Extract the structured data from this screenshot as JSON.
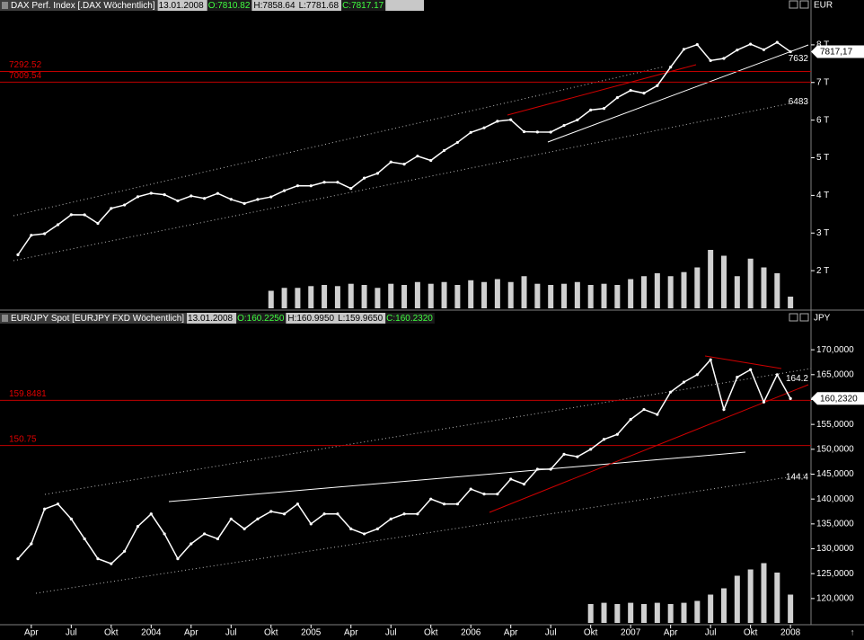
{
  "chart_data": [
    {
      "type": "line",
      "title": "DAX Perf. Index [.DAX  Wöchentlich]",
      "date": "13.01.2008",
      "header": [
        "O:7810.82",
        "H:7858.64",
        "L:7781.68",
        "C:7817.17"
      ],
      "unit": "EUR",
      "color": "#ffffff",
      "values": [
        2424,
        2942,
        2983,
        3221,
        3487,
        3484,
        3257,
        3655,
        3745,
        3965,
        4058,
        4018,
        3856,
        3985,
        3921,
        4052,
        3895,
        3785,
        3893,
        3960,
        4126,
        4256,
        4255,
        4350,
        4349,
        4185,
        4460,
        4586,
        4887,
        4830,
        5044,
        4929,
        5193,
        5408,
        5674,
        5796,
        5970,
        6009,
        5692,
        5683,
        5682,
        5859,
        6005,
        6269,
        6310,
        6597,
        6789,
        6716,
        6917,
        7409,
        7883,
        8007,
        7584,
        7639,
        7862,
        8019,
        7871,
        8067,
        7817
      ],
      "volume": [
        null,
        null,
        null,
        null,
        null,
        null,
        null,
        null,
        null,
        null,
        null,
        null,
        null,
        null,
        null,
        null,
        null,
        null,
        null,
        30,
        35,
        35,
        38,
        40,
        38,
        42,
        40,
        35,
        42,
        40,
        45,
        42,
        45,
        40,
        48,
        45,
        50,
        45,
        55,
        42,
        40,
        42,
        45,
        40,
        42,
        40,
        50,
        55,
        60,
        55,
        62,
        70,
        100,
        90,
        55,
        85,
        70,
        60,
        20
      ],
      "vlim": [
        0,
        100
      ],
      "ylim": [
        1000,
        8905
      ],
      "yticks": [
        {
          "value": 2000,
          "label": "2 T"
        },
        {
          "value": 3000,
          "label": "3 T"
        },
        {
          "value": 4000,
          "label": "4 T"
        },
        {
          "value": 5000,
          "label": "5 T"
        },
        {
          "value": 6000,
          "label": "6 T"
        },
        {
          "value": 7000,
          "label": "7 T"
        },
        {
          "value": 8000,
          "label": "8 T"
        }
      ],
      "last_price": {
        "value": 7817.17,
        "label": "7817,17"
      },
      "levels": [
        7292.52,
        7009.54
      ],
      "annotations": [
        7632,
        6483
      ]
    },
    {
      "type": "line",
      "title": "EUR/JPY Spot [EURJPY FXD  Wöchentlich]",
      "date": "13.01.2008",
      "header": [
        "O:160.2250",
        "H:160.9950",
        "L:159.9650",
        "C:160.2320"
      ],
      "unit": "JPY",
      "color": "#ffffff",
      "categories": [
        null,
        "Apr",
        null,
        null,
        "Jul",
        null,
        null,
        "Okt",
        null,
        null,
        "2004",
        null,
        null,
        "Apr",
        null,
        null,
        "Jul",
        null,
        null,
        "Okt",
        null,
        null,
        "2005",
        null,
        null,
        "Apr",
        null,
        null,
        "Jul",
        null,
        null,
        "Okt",
        null,
        null,
        "2006",
        null,
        null,
        "Apr",
        null,
        null,
        "Jul",
        null,
        null,
        "Okt",
        null,
        null,
        "2007",
        null,
        null,
        "Apr",
        null,
        null,
        "Jul",
        null,
        null,
        "Okt",
        null,
        null,
        "2008"
      ],
      "values": [
        128,
        131,
        138,
        139,
        136,
        132,
        128,
        127,
        129.5,
        134.5,
        137,
        133,
        128,
        131,
        133,
        132,
        136,
        134,
        136,
        137.5,
        137,
        139,
        135,
        137,
        137,
        134,
        133,
        134,
        136,
        137,
        137,
        140,
        139,
        139,
        142,
        141,
        141,
        144,
        143,
        146,
        146,
        149,
        148.5,
        150,
        152,
        153,
        156,
        158,
        157,
        161.5,
        163.5,
        165,
        168,
        158,
        164.5,
        166,
        159.5,
        165,
        160.2
      ],
      "volume": [
        null,
        null,
        null,
        null,
        null,
        null,
        null,
        null,
        null,
        null,
        null,
        null,
        null,
        null,
        null,
        null,
        null,
        null,
        null,
        null,
        null,
        null,
        null,
        null,
        null,
        null,
        null,
        null,
        null,
        null,
        null,
        null,
        null,
        null,
        null,
        null,
        null,
        null,
        null,
        null,
        null,
        null,
        null,
        30,
        32,
        30,
        32,
        30,
        32,
        30,
        32,
        35,
        45,
        55,
        75,
        85,
        95,
        80,
        45
      ],
      "vlim": [
        0,
        100
      ],
      "ylim": [
        115.1,
        174.9
      ],
      "yticks": [
        {
          "value": 120,
          "label": "120,0000"
        },
        {
          "value": 125,
          "label": "125,0000"
        },
        {
          "value": 130,
          "label": "130,0000"
        },
        {
          "value": 135,
          "label": "135,0000"
        },
        {
          "value": 140,
          "label": "140,0000"
        },
        {
          "value": 145,
          "label": "145,0000"
        },
        {
          "value": 150,
          "label": "150,0000"
        },
        {
          "value": 155,
          "label": "155,0000"
        },
        {
          "value": 160,
          "label": "160,0000"
        },
        {
          "value": 165,
          "label": "165,0000"
        },
        {
          "value": 170,
          "label": "170,0000"
        }
      ],
      "last_price": {
        "value": 160.232,
        "label": "160,2320"
      },
      "levels": [
        159.8481,
        150.75
      ],
      "annotations": [
        164.2,
        144.4
      ]
    }
  ]
}
